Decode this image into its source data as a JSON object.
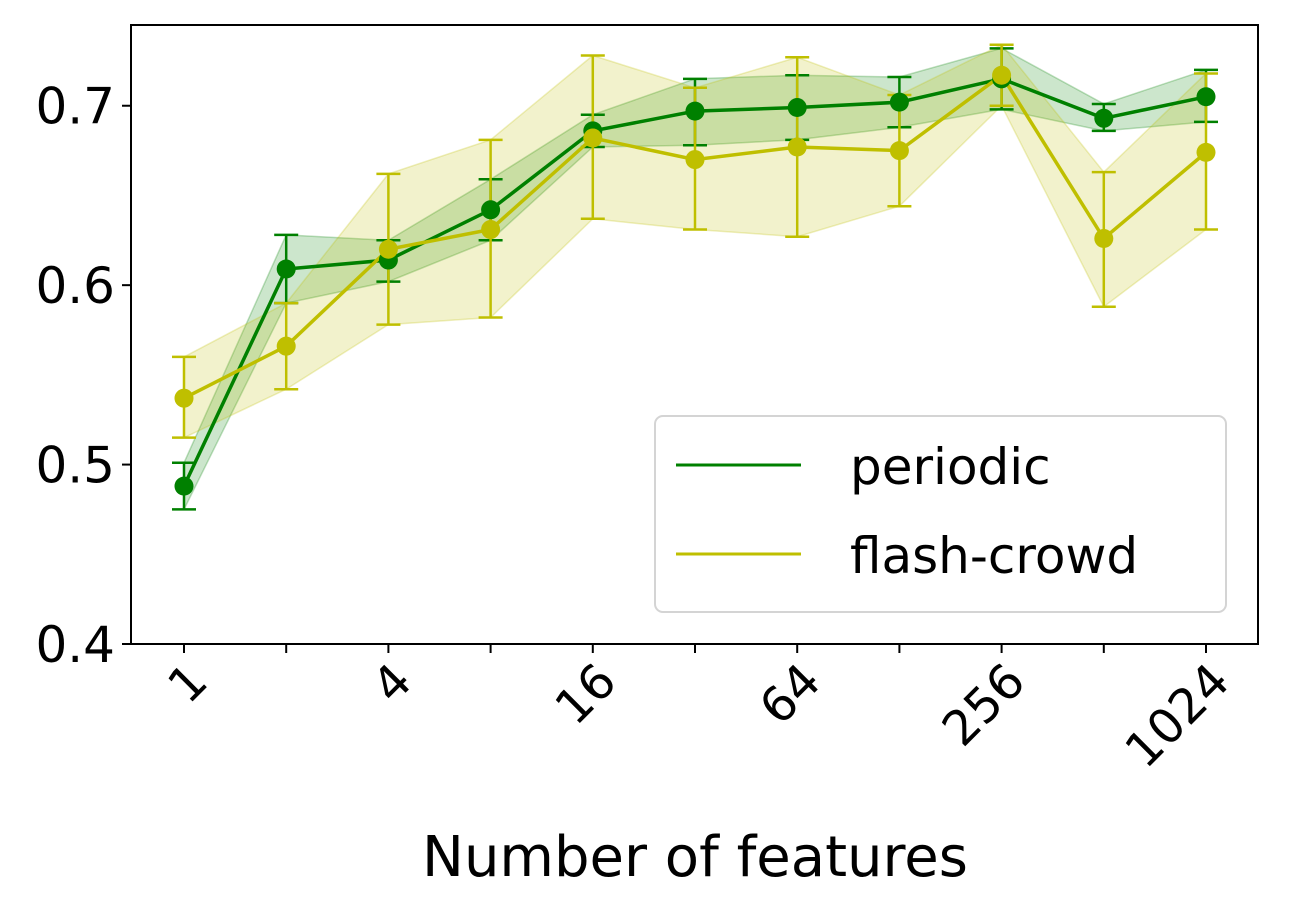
{
  "chart_data": {
    "type": "line",
    "xlabel": "Number of features",
    "ylabel": "",
    "x": [
      1,
      2,
      4,
      8,
      16,
      32,
      64,
      128,
      256,
      512,
      1024
    ],
    "x_scale": "log2",
    "x_tick_values": [
      1,
      2,
      4,
      8,
      16,
      32,
      64,
      128,
      256,
      512,
      1024
    ],
    "x_tick_labels": [
      "1",
      "",
      "4",
      "",
      "16",
      "",
      "64",
      "",
      "256",
      "",
      "1024"
    ],
    "x_tick_rotation_deg": -45,
    "ylim": [
      0.4,
      0.745
    ],
    "y_ticks": [
      0.4,
      0.5,
      0.6,
      0.7
    ],
    "y_tick_labels": [
      "0.4",
      "0.5",
      "0.6",
      "0.7"
    ],
    "grid": false,
    "legend_position": "lower-right",
    "series": [
      {
        "name": "periodic",
        "color": "#008000",
        "values": [
          0.488,
          0.609,
          0.614,
          0.642,
          0.686,
          0.697,
          0.699,
          0.702,
          0.715,
          0.693,
          0.705
        ],
        "lower": [
          0.475,
          0.59,
          0.602,
          0.625,
          0.677,
          0.678,
          0.681,
          0.688,
          0.698,
          0.686,
          0.691
        ],
        "upper": [
          0.501,
          0.628,
          0.625,
          0.659,
          0.695,
          0.715,
          0.717,
          0.716,
          0.732,
          0.701,
          0.72
        ]
      },
      {
        "name": "flash-crowd",
        "color": "#BFBF00",
        "values": [
          0.537,
          0.566,
          0.62,
          0.631,
          0.682,
          0.67,
          0.677,
          0.675,
          0.717,
          0.626,
          0.674
        ],
        "lower": [
          0.515,
          0.542,
          0.578,
          0.582,
          0.637,
          0.631,
          0.627,
          0.644,
          0.7,
          0.588,
          0.631
        ],
        "upper": [
          0.56,
          0.59,
          0.662,
          0.681,
          0.728,
          0.71,
          0.727,
          0.706,
          0.734,
          0.663,
          0.718
        ]
      }
    ]
  }
}
